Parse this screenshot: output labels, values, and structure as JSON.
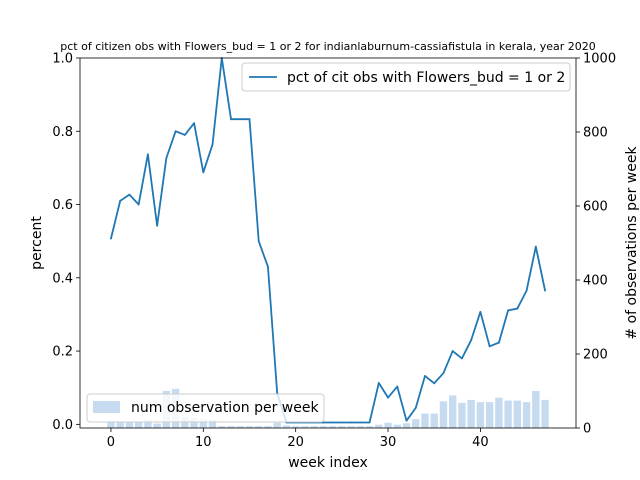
{
  "chart_data": {
    "type": "line",
    "title": "pct of citizen obs with Flowers_bud = 1 or 2 for indianlaburnum-cassiafistula in kerala, year 2020",
    "xlabel": "week index",
    "ylabel": "percent",
    "ylabel_right": "# of observations per week",
    "xlim": [
      -3.35,
      50.35
    ],
    "ylim": [
      -0.01,
      1.0
    ],
    "ylim_right": [
      0,
      1000
    ],
    "x_ticks": [
      "0",
      "10",
      "20",
      "30",
      "40"
    ],
    "y_ticks": [
      "0.0",
      "0.2",
      "0.4",
      "0.6",
      "0.8",
      "1.0"
    ],
    "y_ticks_right": [
      "0",
      "200",
      "400",
      "600",
      "800",
      "1000"
    ],
    "line_legend": "pct of cit obs with Flowers_bud = 1 or 2",
    "bar_legend": "num observation per week",
    "line_color": "#1f77b4",
    "bar_color": "#c6dbef",
    "x": [
      0,
      1,
      2,
      3,
      4,
      5,
      6,
      7,
      8,
      9,
      10,
      11,
      12,
      13,
      14,
      15,
      16,
      17,
      18,
      19,
      20,
      21,
      22,
      23,
      24,
      25,
      26,
      27,
      28,
      29,
      30,
      31,
      32,
      33,
      34,
      35,
      36,
      37,
      38,
      39,
      40,
      41,
      42,
      43,
      44,
      45,
      46,
      47
    ],
    "percent": [
      0.507,
      0.61,
      0.627,
      0.6,
      0.737,
      0.542,
      0.727,
      0.8,
      0.79,
      0.822,
      0.688,
      0.764,
      1.0,
      0.833,
      0.833,
      0.833,
      0.5,
      0.43,
      0.085,
      0.005,
      0.005,
      0.005,
      0.005,
      0.005,
      0.005,
      0.005,
      0.005,
      0.005,
      0.005,
      0.113,
      0.073,
      0.103,
      0.01,
      0.045,
      0.132,
      0.112,
      0.14,
      0.2,
      0.18,
      0.23,
      0.307,
      0.213,
      0.223,
      0.311,
      0.316,
      0.365,
      0.485,
      0.365
    ],
    "observations": [
      20,
      18,
      15,
      15,
      22,
      12,
      100,
      106,
      30,
      28,
      25,
      22,
      5,
      5,
      5,
      5,
      5,
      5,
      14,
      7,
      5,
      5,
      5,
      5,
      5,
      5,
      5,
      5,
      5,
      9,
      14,
      9,
      13,
      24,
      39,
      39,
      72,
      88,
      68,
      76,
      70,
      70,
      82,
      74,
      74,
      70,
      100,
      76
    ]
  }
}
